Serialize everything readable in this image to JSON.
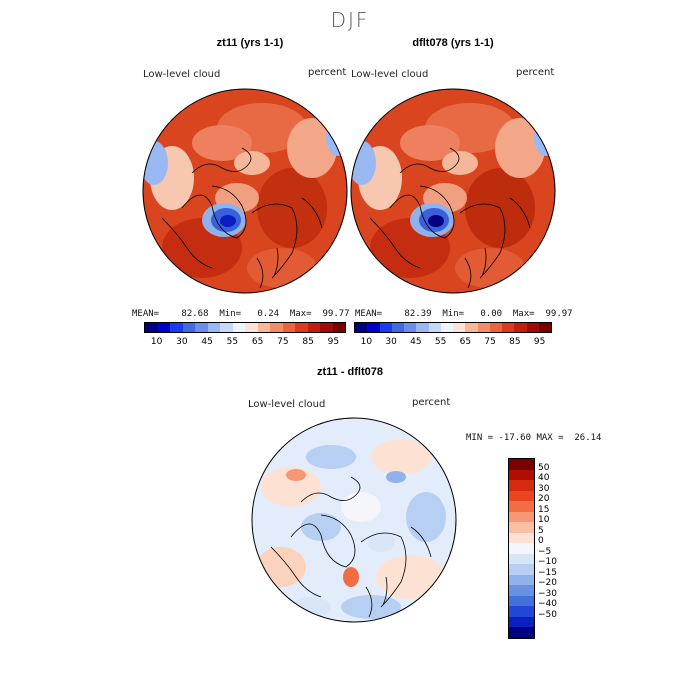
{
  "season": "DJF",
  "panels": [
    {
      "title": "zt11 (yrs 1-1)",
      "variable_label": "Low-level cloud",
      "units_label": "percent",
      "stats": {
        "mean_label": "MEAN=",
        "mean": "82.68",
        "min_label": "Min=",
        "min": "0.24",
        "max_label": "Max=",
        "max": "99.77"
      }
    },
    {
      "title": "dflt078 (yrs 1-1)",
      "variable_label": "Low-level cloud",
      "units_label": "percent",
      "stats": {
        "mean_label": "MEAN=",
        "mean": "82.39",
        "min_label": "Min=",
        "min": "0.00",
        "max_label": "Max=",
        "max": "99.97"
      }
    }
  ],
  "abs_colorbar": {
    "ticks": [
      "10",
      "30",
      "45",
      "55",
      "65",
      "75",
      "85",
      "95"
    ],
    "colors": [
      "#000080",
      "#0000cd",
      "#1a3cf0",
      "#4169e1",
      "#6a8ef0",
      "#9bb8f5",
      "#c6daf8",
      "#eef4fb",
      "#fde3d3",
      "#f8b898",
      "#f28d6a",
      "#ea6440",
      "#dc3a1c",
      "#c21e0c",
      "#a00c03",
      "#7a0000"
    ]
  },
  "diff": {
    "title": "zt11 - dflt078",
    "variable_label": "Low-level cloud",
    "units_label": "percent",
    "minmax_text": "MIN = -17.60 MAX =  26.14",
    "colorbar": {
      "ticks": [
        "50",
        "40",
        "30",
        "20",
        "15",
        "10",
        "5",
        "0",
        "−5",
        "−10",
        "−15",
        "−20",
        "−30",
        "−40",
        "−50"
      ],
      "colors": [
        "#7a0000",
        "#b00d03",
        "#d42a12",
        "#e8461f",
        "#f26c45",
        "#f79773",
        "#fbbfa3",
        "#fde2d3",
        "#f4f6fb",
        "#d9e6f8",
        "#b6cff2",
        "#8fb2ea",
        "#6b92e2",
        "#4470dc",
        "#2246d6",
        "#0a1fbf",
        "#000080"
      ]
    }
  },
  "colors": {
    "land_outline": "#000000",
    "map_rim": "#000000"
  }
}
